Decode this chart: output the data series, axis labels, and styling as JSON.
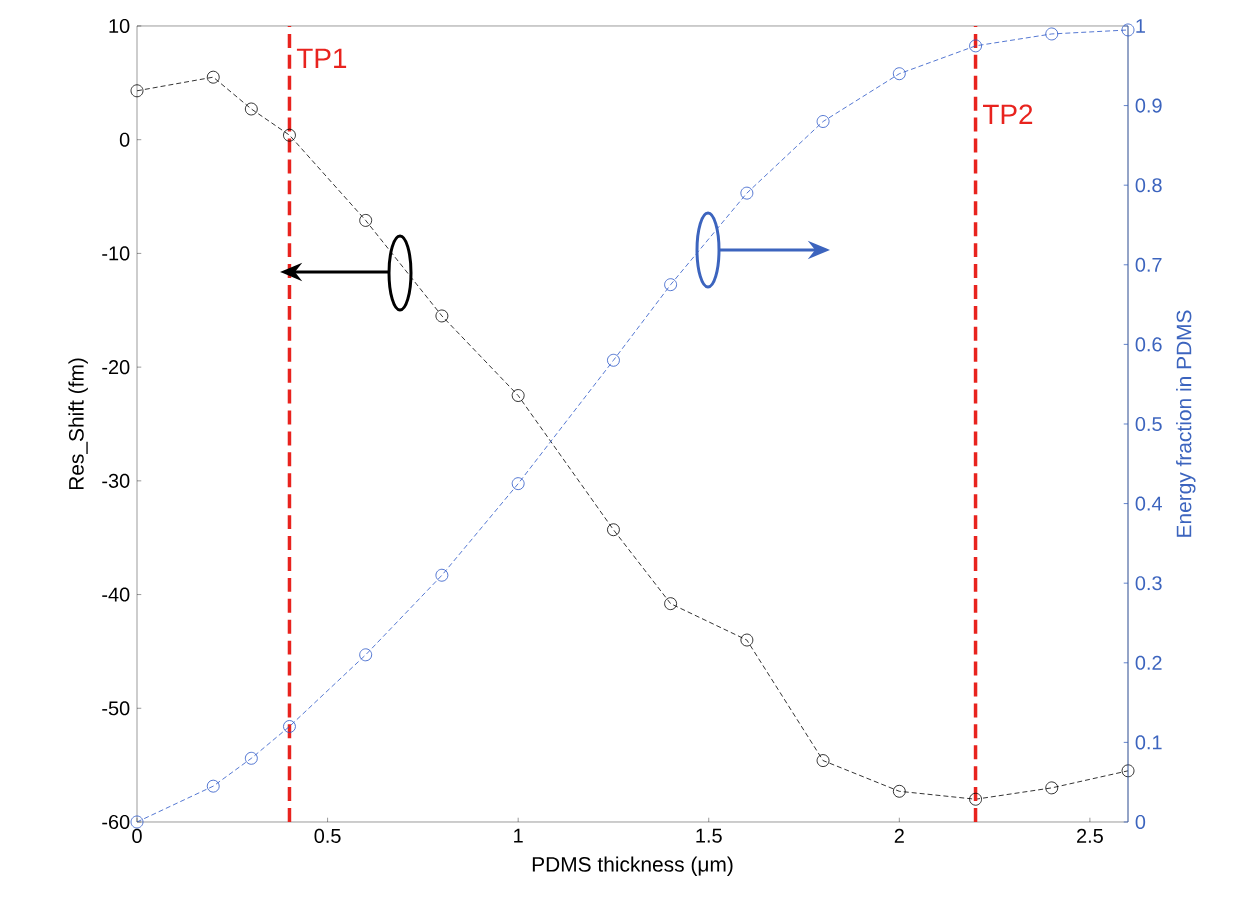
{
  "chart_data": {
    "type": "line",
    "xlabel": "PDMS thickness (μm)",
    "ylabel": "Res_Shift (fm)",
    "y2label": "Energy fraction in PDMS",
    "x": [
      0,
      0.2,
      0.3,
      0.4,
      0.6,
      0.8,
      1.0,
      1.25,
      1.4,
      1.6,
      1.8,
      2.0,
      2.2,
      2.4,
      2.6
    ],
    "series": [
      {
        "color": "#000000",
        "values": [
          4.3,
          5.5,
          2.7,
          0.4,
          -7.1,
          -15.5,
          -22.5,
          -34.3,
          -40.8,
          -44,
          -54.6,
          -57.3,
          -58,
          -57,
          -55.5
        ]
      },
      {
        "color": "#2a56c6",
        "axis": "y2",
        "values": [
          0,
          0.045,
          0.08,
          0.12,
          0.21,
          0.31,
          0.425,
          0.58,
          0.675,
          0.79,
          0.88,
          0.94,
          0.975,
          0.99,
          0.995
        ]
      }
    ],
    "xlim": [
      0,
      2.6
    ],
    "xticks": [
      0,
      0.5,
      1,
      1.5,
      2,
      2.5
    ],
    "ylim": [
      -60,
      10
    ],
    "yticks": [
      -60,
      -50,
      -40,
      -30,
      -20,
      -10,
      0,
      10
    ],
    "y2lim": [
      0,
      1
    ],
    "y2ticks": [
      0,
      0.1,
      0.2,
      0.3,
      0.4,
      0.5,
      0.6,
      0.7,
      0.8,
      0.9,
      1
    ],
    "ref_lines": [
      {
        "axis": "x",
        "value": 0.4,
        "label": "TP1",
        "color": "#e8231e",
        "line_style": "dashed"
      },
      {
        "axis": "x",
        "value": 2.2,
        "label": "TP2",
        "color": "#e8231e",
        "line_style": "dashed"
      }
    ],
    "marker": "circle",
    "line_style": "dashed",
    "grid": false
  }
}
